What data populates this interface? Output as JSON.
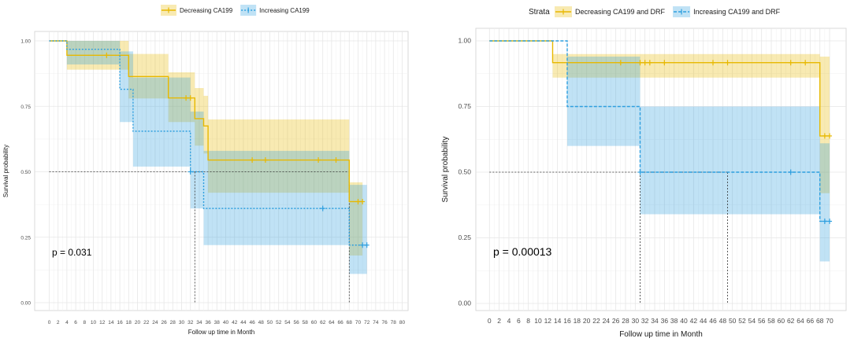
{
  "chart_data": [
    {
      "type": "line",
      "subtype": "kaplan-meier",
      "legend_title": "",
      "legend_position": "top",
      "xlabel": "Follow up time in Month",
      "ylabel": "Survival probability",
      "xlim": [
        0,
        80
      ],
      "ylim": [
        0,
        1
      ],
      "x_ticks": [
        0,
        2,
        4,
        6,
        8,
        10,
        12,
        14,
        16,
        18,
        20,
        22,
        24,
        26,
        28,
        30,
        32,
        34,
        36,
        38,
        40,
        42,
        44,
        46,
        48,
        50,
        52,
        54,
        56,
        58,
        60,
        62,
        64,
        66,
        68,
        70,
        72,
        74,
        76,
        78,
        80
      ],
      "y_ticks": [
        "0.00",
        "0.25",
        "0.50",
        "0.75",
        "1.00"
      ],
      "annotation": "p = 0.031",
      "median_lines": {
        "y": 0.5,
        "x": [
          33,
          68
        ]
      },
      "series": [
        {
          "name": "Decreasing CA199",
          "color": "#E7B800",
          "dash": "solid",
          "steps": [
            [
              0,
              1.0
            ],
            [
              4,
              0.945
            ],
            [
              18,
              0.864
            ],
            [
              27,
              0.782
            ],
            [
              33,
              0.703
            ],
            [
              35,
              0.675
            ],
            [
              36,
              0.545
            ],
            [
              68,
              0.386
            ],
            [
              71,
              0.386
            ]
          ],
          "ci": [
            [
              0,
              1.0,
              1.0
            ],
            [
              4,
              0.89,
              1.0
            ],
            [
              18,
              0.78,
              0.95
            ],
            [
              27,
              0.69,
              0.88
            ],
            [
              33,
              0.6,
              0.82
            ],
            [
              35,
              0.57,
              0.79
            ],
            [
              36,
              0.42,
              0.7
            ],
            [
              68,
              0.18,
              0.46
            ],
            [
              71,
              0.18,
              0.46
            ]
          ],
          "censors": [
            [
              13,
              0.945
            ],
            [
              31,
              0.782
            ],
            [
              32,
              0.782
            ],
            [
              46,
              0.545
            ],
            [
              49,
              0.545
            ],
            [
              61,
              0.545
            ],
            [
              65,
              0.545
            ],
            [
              70,
              0.386
            ],
            [
              71,
              0.386
            ]
          ]
        },
        {
          "name": "Increasing CA199",
          "color": "#2E9FDF",
          "dash": "dotted",
          "steps": [
            [
              0,
              1.0
            ],
            [
              4,
              0.968
            ],
            [
              16,
              0.815
            ],
            [
              19,
              0.655
            ],
            [
              32,
              0.5
            ],
            [
              35,
              0.36
            ],
            [
              68,
              0.22
            ],
            [
              72,
              0.22
            ]
          ],
          "ci": [
            [
              0,
              1.0,
              1.0
            ],
            [
              4,
              0.91,
              1.0
            ],
            [
              16,
              0.69,
              0.96
            ],
            [
              19,
              0.52,
              0.86
            ],
            [
              32,
              0.36,
              0.73
            ],
            [
              35,
              0.22,
              0.58
            ],
            [
              68,
              0.11,
              0.45
            ],
            [
              72,
              0.11,
              0.45
            ]
          ],
          "censors": [
            [
              32,
              0.5
            ],
            [
              62,
              0.36
            ],
            [
              71,
              0.22
            ],
            [
              72,
              0.22
            ]
          ]
        }
      ]
    },
    {
      "type": "line",
      "subtype": "kaplan-meier",
      "legend_title": "Strata",
      "legend_position": "top",
      "xlabel": "Follow up time in Month",
      "ylabel": "Survival probability",
      "xlim": [
        0,
        71
      ],
      "ylim": [
        0,
        1
      ],
      "x_ticks": [
        0,
        2,
        4,
        6,
        8,
        10,
        12,
        14,
        16,
        18,
        20,
        22,
        24,
        26,
        28,
        30,
        32,
        34,
        36,
        38,
        40,
        42,
        44,
        46,
        48,
        50,
        52,
        54,
        56,
        58,
        60,
        62,
        64,
        66,
        68,
        70
      ],
      "y_ticks": [
        "0.00",
        "0.25",
        "0.50",
        "0.75",
        "1.00"
      ],
      "annotation": "p = 0.00013",
      "median_lines": {
        "y": 0.5,
        "x": [
          31,
          49
        ]
      },
      "series": [
        {
          "name": "Decreasing CA199 and DRF",
          "color": "#E7B800",
          "dash": "solid",
          "steps": [
            [
              0,
              1.0
            ],
            [
              13,
              0.917
            ],
            [
              68,
              0.638
            ],
            [
              70,
              0.638
            ]
          ],
          "ci": [
            [
              0,
              1.0,
              1.0
            ],
            [
              13,
              0.86,
              0.95
            ],
            [
              68,
              0.42,
              0.94
            ],
            [
              70,
              0.42,
              0.94
            ]
          ],
          "censors": [
            [
              27,
              0.917
            ],
            [
              31,
              0.917
            ],
            [
              32,
              0.917
            ],
            [
              33,
              0.917
            ],
            [
              36,
              0.917
            ],
            [
              46,
              0.917
            ],
            [
              49,
              0.917
            ],
            [
              62,
              0.917
            ],
            [
              65,
              0.917
            ],
            [
              69,
              0.638
            ],
            [
              70,
              0.638
            ]
          ]
        },
        {
          "name": "Increasing CA199 and DRF",
          "color": "#2E9FDF",
          "dash": "dashed",
          "steps": [
            [
              0,
              1.0
            ],
            [
              16,
              0.75
            ],
            [
              31,
              0.5
            ],
            [
              68,
              0.313
            ],
            [
              70,
              0.313
            ]
          ],
          "ci": [
            [
              0,
              1.0,
              1.0
            ],
            [
              16,
              0.6,
              0.94
            ],
            [
              31,
              0.34,
              0.75
            ],
            [
              68,
              0.16,
              0.61
            ],
            [
              70,
              0.16,
              0.61
            ]
          ],
          "censors": [
            [
              31,
              0.5
            ],
            [
              62,
              0.5
            ],
            [
              69,
              0.313
            ],
            [
              70,
              0.313
            ]
          ]
        }
      ]
    }
  ]
}
